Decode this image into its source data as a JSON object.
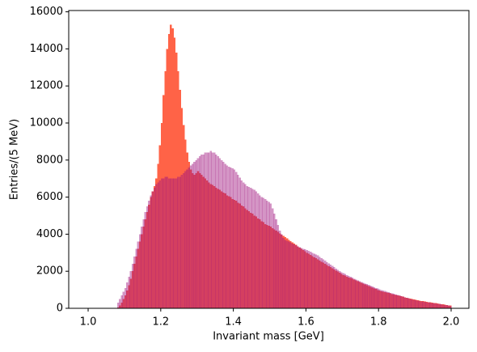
{
  "chart_data": {
    "type": "histogram",
    "xlabel": "Invariant mass [GeV]",
    "ylabel": "Entries/(5 MeV)",
    "bins": [
      1.0,
      1.005,
      1.01,
      1.015,
      1.02,
      1.025,
      1.03,
      1.035,
      1.04,
      1.045,
      1.05,
      1.055,
      1.06,
      1.065,
      1.07,
      1.075,
      1.08,
      1.085,
      1.09,
      1.095,
      1.1,
      1.105,
      1.11,
      1.115,
      1.12,
      1.125,
      1.13,
      1.135,
      1.14,
      1.145,
      1.15,
      1.155,
      1.16,
      1.165,
      1.17,
      1.175,
      1.18,
      1.185,
      1.19,
      1.195,
      1.2,
      1.205,
      1.21,
      1.215,
      1.22,
      1.225,
      1.23,
      1.235,
      1.24,
      1.245,
      1.25,
      1.255,
      1.26,
      1.265,
      1.27,
      1.275,
      1.28,
      1.285,
      1.29,
      1.295,
      1.3,
      1.305,
      1.31,
      1.315,
      1.32,
      1.325,
      1.33,
      1.335,
      1.34,
      1.345,
      1.35,
      1.355,
      1.36,
      1.365,
      1.37,
      1.375,
      1.38,
      1.385,
      1.39,
      1.395,
      1.4,
      1.405,
      1.41,
      1.415,
      1.42,
      1.425,
      1.43,
      1.435,
      1.44,
      1.445,
      1.45,
      1.455,
      1.46,
      1.465,
      1.47,
      1.475,
      1.48,
      1.485,
      1.49,
      1.495,
      1.5,
      1.505,
      1.51,
      1.515,
      1.52,
      1.525,
      1.53,
      1.535,
      1.54,
      1.545,
      1.55,
      1.555,
      1.56,
      1.565,
      1.57,
      1.575,
      1.58,
      1.585,
      1.59,
      1.595,
      1.6,
      1.605,
      1.61,
      1.615,
      1.62,
      1.625,
      1.63,
      1.635,
      1.64,
      1.645,
      1.65,
      1.655,
      1.66,
      1.665,
      1.67,
      1.675,
      1.68,
      1.685,
      1.69,
      1.695,
      1.7,
      1.705,
      1.71,
      1.715,
      1.72,
      1.725,
      1.73,
      1.735,
      1.74,
      1.745,
      1.75,
      1.755,
      1.76,
      1.765,
      1.77,
      1.775,
      1.78,
      1.785,
      1.79,
      1.795,
      1.8,
      1.805,
      1.81,
      1.815,
      1.82,
      1.825,
      1.83,
      1.835,
      1.84,
      1.845,
      1.85,
      1.855,
      1.86,
      1.865,
      1.87,
      1.875,
      1.88,
      1.885,
      1.89,
      1.895,
      1.9,
      1.905,
      1.91,
      1.915,
      1.92,
      1.925,
      1.93,
      1.935,
      1.94,
      1.945,
      1.95,
      1.955,
      1.96,
      1.965,
      1.97,
      1.975,
      1.98,
      1.985,
      1.99,
      1.995,
      2.0
    ],
    "series": [
      {
        "color": "#ff6347",
        "opacity": 1,
        "values": [
          0,
          0,
          0,
          0,
          0,
          0,
          0,
          0,
          0,
          0,
          0,
          0,
          0,
          0,
          0,
          0,
          50,
          150,
          300,
          500,
          700,
          950,
          1250,
          1600,
          2000,
          2400,
          2800,
          3200,
          3600,
          4000,
          4400,
          4800,
          5200,
          5600,
          6000,
          6300,
          6600,
          7000,
          7800,
          8800,
          10000,
          11500,
          12800,
          14000,
          14800,
          15300,
          15100,
          14600,
          13800,
          12800,
          11800,
          10800,
          9900,
          9100,
          8400,
          7900,
          7500,
          7300,
          7200,
          7300,
          7400,
          7300,
          7200,
          7100,
          7000,
          6900,
          6800,
          6700,
          6650,
          6600,
          6500,
          6450,
          6400,
          6300,
          6250,
          6200,
          6100,
          6050,
          6000,
          5900,
          5850,
          5800,
          5700,
          5650,
          5550,
          5500,
          5400,
          5300,
          5250,
          5150,
          5100,
          5000,
          4950,
          4850,
          4800,
          4700,
          4650,
          4550,
          4500,
          4450,
          4400,
          4330,
          4260,
          4190,
          4120,
          4050,
          3980,
          3910,
          3840,
          3770,
          3700,
          3630,
          3560,
          3490,
          3420,
          3350,
          3280,
          3210,
          3140,
          3070,
          3000,
          2940,
          2880,
          2820,
          2760,
          2700,
          2640,
          2580,
          2520,
          2460,
          2400,
          2340,
          2280,
          2220,
          2160,
          2100,
          2040,
          1980,
          1920,
          1860,
          1800,
          1760,
          1710,
          1670,
          1630,
          1590,
          1540,
          1500,
          1460,
          1420,
          1380,
          1330,
          1290,
          1250,
          1210,
          1160,
          1120,
          1080,
          1040,
          990,
          950,
          925,
          900,
          875,
          850,
          825,
          800,
          775,
          750,
          725,
          700,
          675,
          650,
          625,
          600,
          575,
          550,
          525,
          500,
          475,
          450,
          434,
          418,
          402,
          386,
          370,
          354,
          338,
          322,
          306,
          290,
          274,
          258,
          242,
          226,
          210,
          194,
          178,
          162,
          146
        ]
      },
      {
        "color": "#a0157f",
        "opacity": 0.45,
        "values": [
          0,
          0,
          0,
          0,
          0,
          0,
          0,
          0,
          0,
          0,
          0,
          0,
          0,
          0,
          0,
          0,
          300,
          500,
          700,
          900,
          1100,
          1400,
          1700,
          2000,
          2400,
          2800,
          3200,
          3600,
          4000,
          4400,
          4800,
          5200,
          5500,
          5800,
          6100,
          6300,
          6500,
          6700,
          6800,
          6900,
          7000,
          7000,
          7100,
          7100,
          7000,
          7000,
          7000,
          7000,
          7000,
          7100,
          7100,
          7200,
          7300,
          7400,
          7500,
          7600,
          7700,
          7800,
          7900,
          8000,
          8100,
          8200,
          8300,
          8300,
          8400,
          8400,
          8400,
          8500,
          8400,
          8400,
          8300,
          8200,
          8100,
          8000,
          7900,
          7800,
          7700,
          7650,
          7600,
          7550,
          7500,
          7350,
          7200,
          7050,
          6900,
          6800,
          6700,
          6600,
          6550,
          6500,
          6450,
          6400,
          6300,
          6200,
          6100,
          6000,
          5950,
          5900,
          5800,
          5750,
          5650,
          5400,
          5100,
          4800,
          4500,
          4200,
          4000,
          3800,
          3700,
          3650,
          3600,
          3550,
          3500,
          3450,
          3400,
          3350,
          3300,
          3250,
          3200,
          3180,
          3150,
          3100,
          3050,
          3000,
          2950,
          2900,
          2850,
          2780,
          2710,
          2640,
          2570,
          2500,
          2430,
          2360,
          2290,
          2220,
          2150,
          2080,
          2010,
          1950,
          1900,
          1850,
          1800,
          1750,
          1700,
          1650,
          1600,
          1550,
          1500,
          1460,
          1420,
          1380,
          1340,
          1300,
          1260,
          1220,
          1180,
          1140,
          1100,
          1060,
          1020,
          990,
          960,
          930,
          900,
          870,
          840,
          810,
          780,
          750,
          720,
          690,
          660,
          630,
          600,
          570,
          540,
          510,
          480,
          455,
          430,
          410,
          395,
          380,
          365,
          350,
          335,
          320,
          305,
          290,
          275,
          260,
          245,
          230,
          215,
          200,
          185,
          170,
          155,
          140
        ]
      }
    ],
    "xlim": [
      0.9465,
      2.049
    ],
    "ylim": [
      0,
      16070
    ],
    "xticks": [
      {
        "value": 1.0,
        "label": "1.0"
      },
      1.2,
      1.4,
      1.6,
      1.8,
      {
        "value": 2.0,
        "label": "2.0"
      }
    ],
    "yticks": [
      0,
      2000,
      4000,
      6000,
      8000,
      10000,
      12000,
      14000,
      16000
    ]
  }
}
